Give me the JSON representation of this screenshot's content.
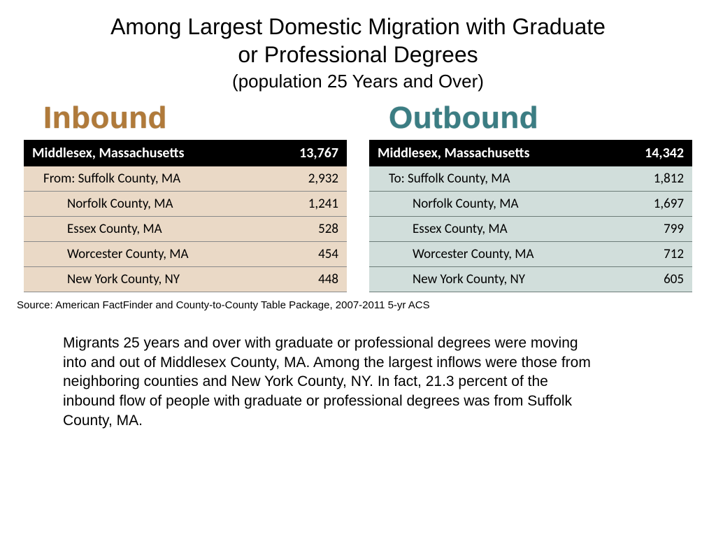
{
  "title": {
    "line1": "Among Largest Domestic Migration with Graduate",
    "line2": "or Professional Degrees",
    "subtitle": "(population 25 Years and Over)"
  },
  "inbound": {
    "heading": "Inbound",
    "heading_color": "#b07a3a",
    "header_label": "Middlesex, Massachusetts",
    "header_value": "13,767",
    "row_bg": "#ead9c6",
    "row_border": "#8a8a8a",
    "rows": [
      {
        "label": "From: Suffolk County, MA",
        "value": "2,932"
      },
      {
        "label": "Norfolk County, MA",
        "value": "1,241"
      },
      {
        "label": "Essex County, MA",
        "value": "528"
      },
      {
        "label": "Worcester County, MA",
        "value": "454"
      },
      {
        "label": "New York County, NY",
        "value": "448"
      }
    ]
  },
  "outbound": {
    "heading": "Outbound",
    "heading_color": "#3b7d83",
    "header_label": "Middlesex, Massachusetts",
    "header_value": "14,342",
    "row_bg": "#d1dedb",
    "row_border": "#6d7d79",
    "rows": [
      {
        "label": "To: Suffolk County, MA",
        "value": "1,812"
      },
      {
        "label": "Norfolk County, MA",
        "value": "1,697"
      },
      {
        "label": "Essex County, MA",
        "value": "799"
      },
      {
        "label": "Worcester County, MA",
        "value": "712"
      },
      {
        "label": "New York County, NY",
        "value": "605"
      }
    ]
  },
  "source": "Source:  American FactFinder and County-to-County Table Package, 2007-2011 5-yr ACS",
  "body": "Migrants 25 years and over with graduate or professional degrees were moving into and out of Middlesex County, MA.  Among the largest inflows were those from neighboring counties and New York County, NY.  In fact, 21.3 percent of the inbound flow of people with graduate or professional degrees was from Suffolk County, MA.",
  "styling": {
    "page_bg": "#ffffff",
    "header_bg": "#000000",
    "header_text": "#ffffff",
    "title_fontsize": 32,
    "subtitle_fontsize": 26,
    "panel_title_fontsize": 44,
    "table_header_fontsize": 20,
    "table_row_fontsize": 19,
    "source_fontsize": 15,
    "body_fontsize": 21
  }
}
